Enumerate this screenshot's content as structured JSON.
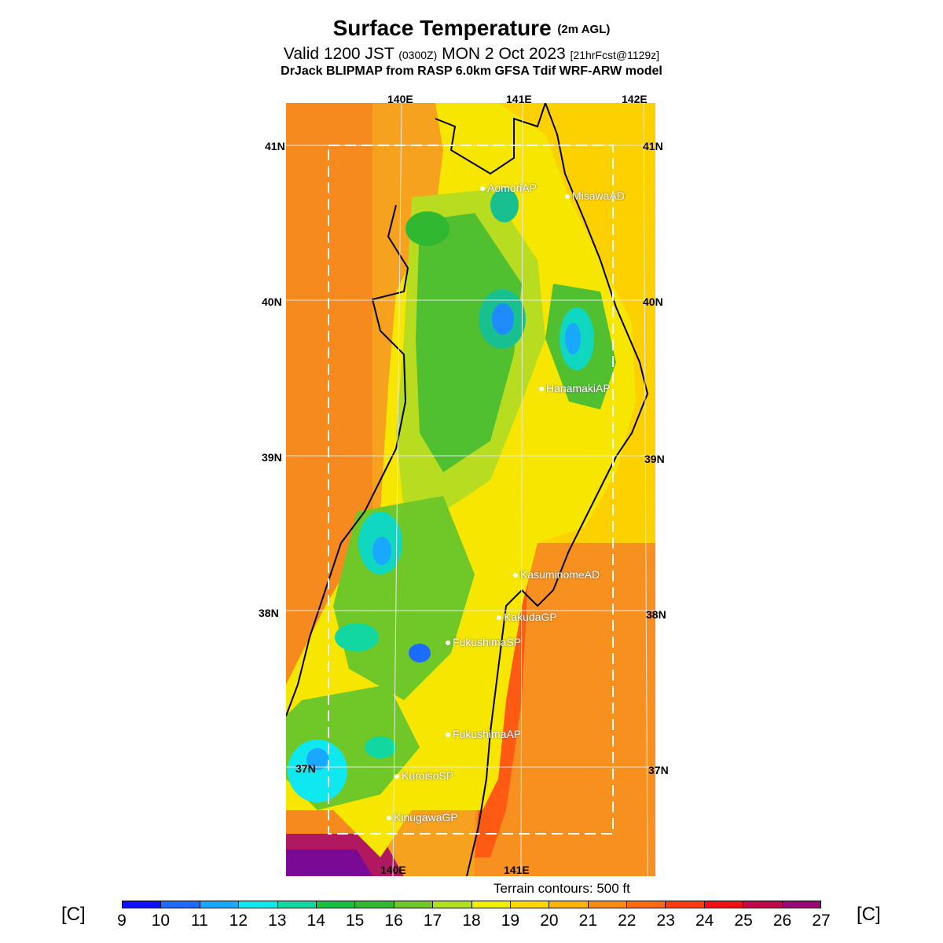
{
  "header": {
    "title": "Surface Temperature",
    "title_suffix": "(2m AGL)",
    "valid_prefix": "Valid 1200 JST",
    "valid_zulu": "(0300Z)",
    "valid_date": "MON 2 Oct 2023",
    "forecast_info": "[21hrFcst@1129z]",
    "model_line": "DrJack BLIPMAP from RASP 6.0km GFSA Tdif WRF-ARW model"
  },
  "map": {
    "lon_top": [
      "140E",
      "141E",
      "142E"
    ],
    "lon_bottom": [
      "140E",
      "141E"
    ],
    "lat_left": [
      "41N",
      "40N",
      "39N",
      "38N",
      "37N"
    ],
    "lat_right": [
      "41N",
      "40N",
      "39N",
      "38N",
      "37N"
    ],
    "stations": [
      "AomoriAP",
      "MisawaAD",
      "HanamakiAP",
      "KasuminomeAD",
      "KakudaGP",
      "FukushimaSP",
      "FukushimaAP",
      "KuroisoSP",
      "KinugawaGP"
    ]
  },
  "footer": {
    "terrain_note": "Terrain contours: 500 ft",
    "unit_left": "[C]",
    "unit_right": "[C]"
  },
  "colorbar": {
    "ticks": [
      "9",
      "10",
      "11",
      "12",
      "13",
      "14",
      "15",
      "16",
      "17",
      "18",
      "19",
      "20",
      "21",
      "22",
      "23",
      "24",
      "25",
      "26",
      "27"
    ],
    "colors": [
      "#1010ff",
      "#1e6cff",
      "#18a8ff",
      "#10e8f0",
      "#10d8a0",
      "#18c040",
      "#30b830",
      "#70c828",
      "#b0e020",
      "#f0f000",
      "#ffd800",
      "#ffb400",
      "#fc8c10",
      "#fc6a10",
      "#ff3c10",
      "#f01010",
      "#c0084a",
      "#980a78",
      "#7a0a96"
    ]
  }
}
